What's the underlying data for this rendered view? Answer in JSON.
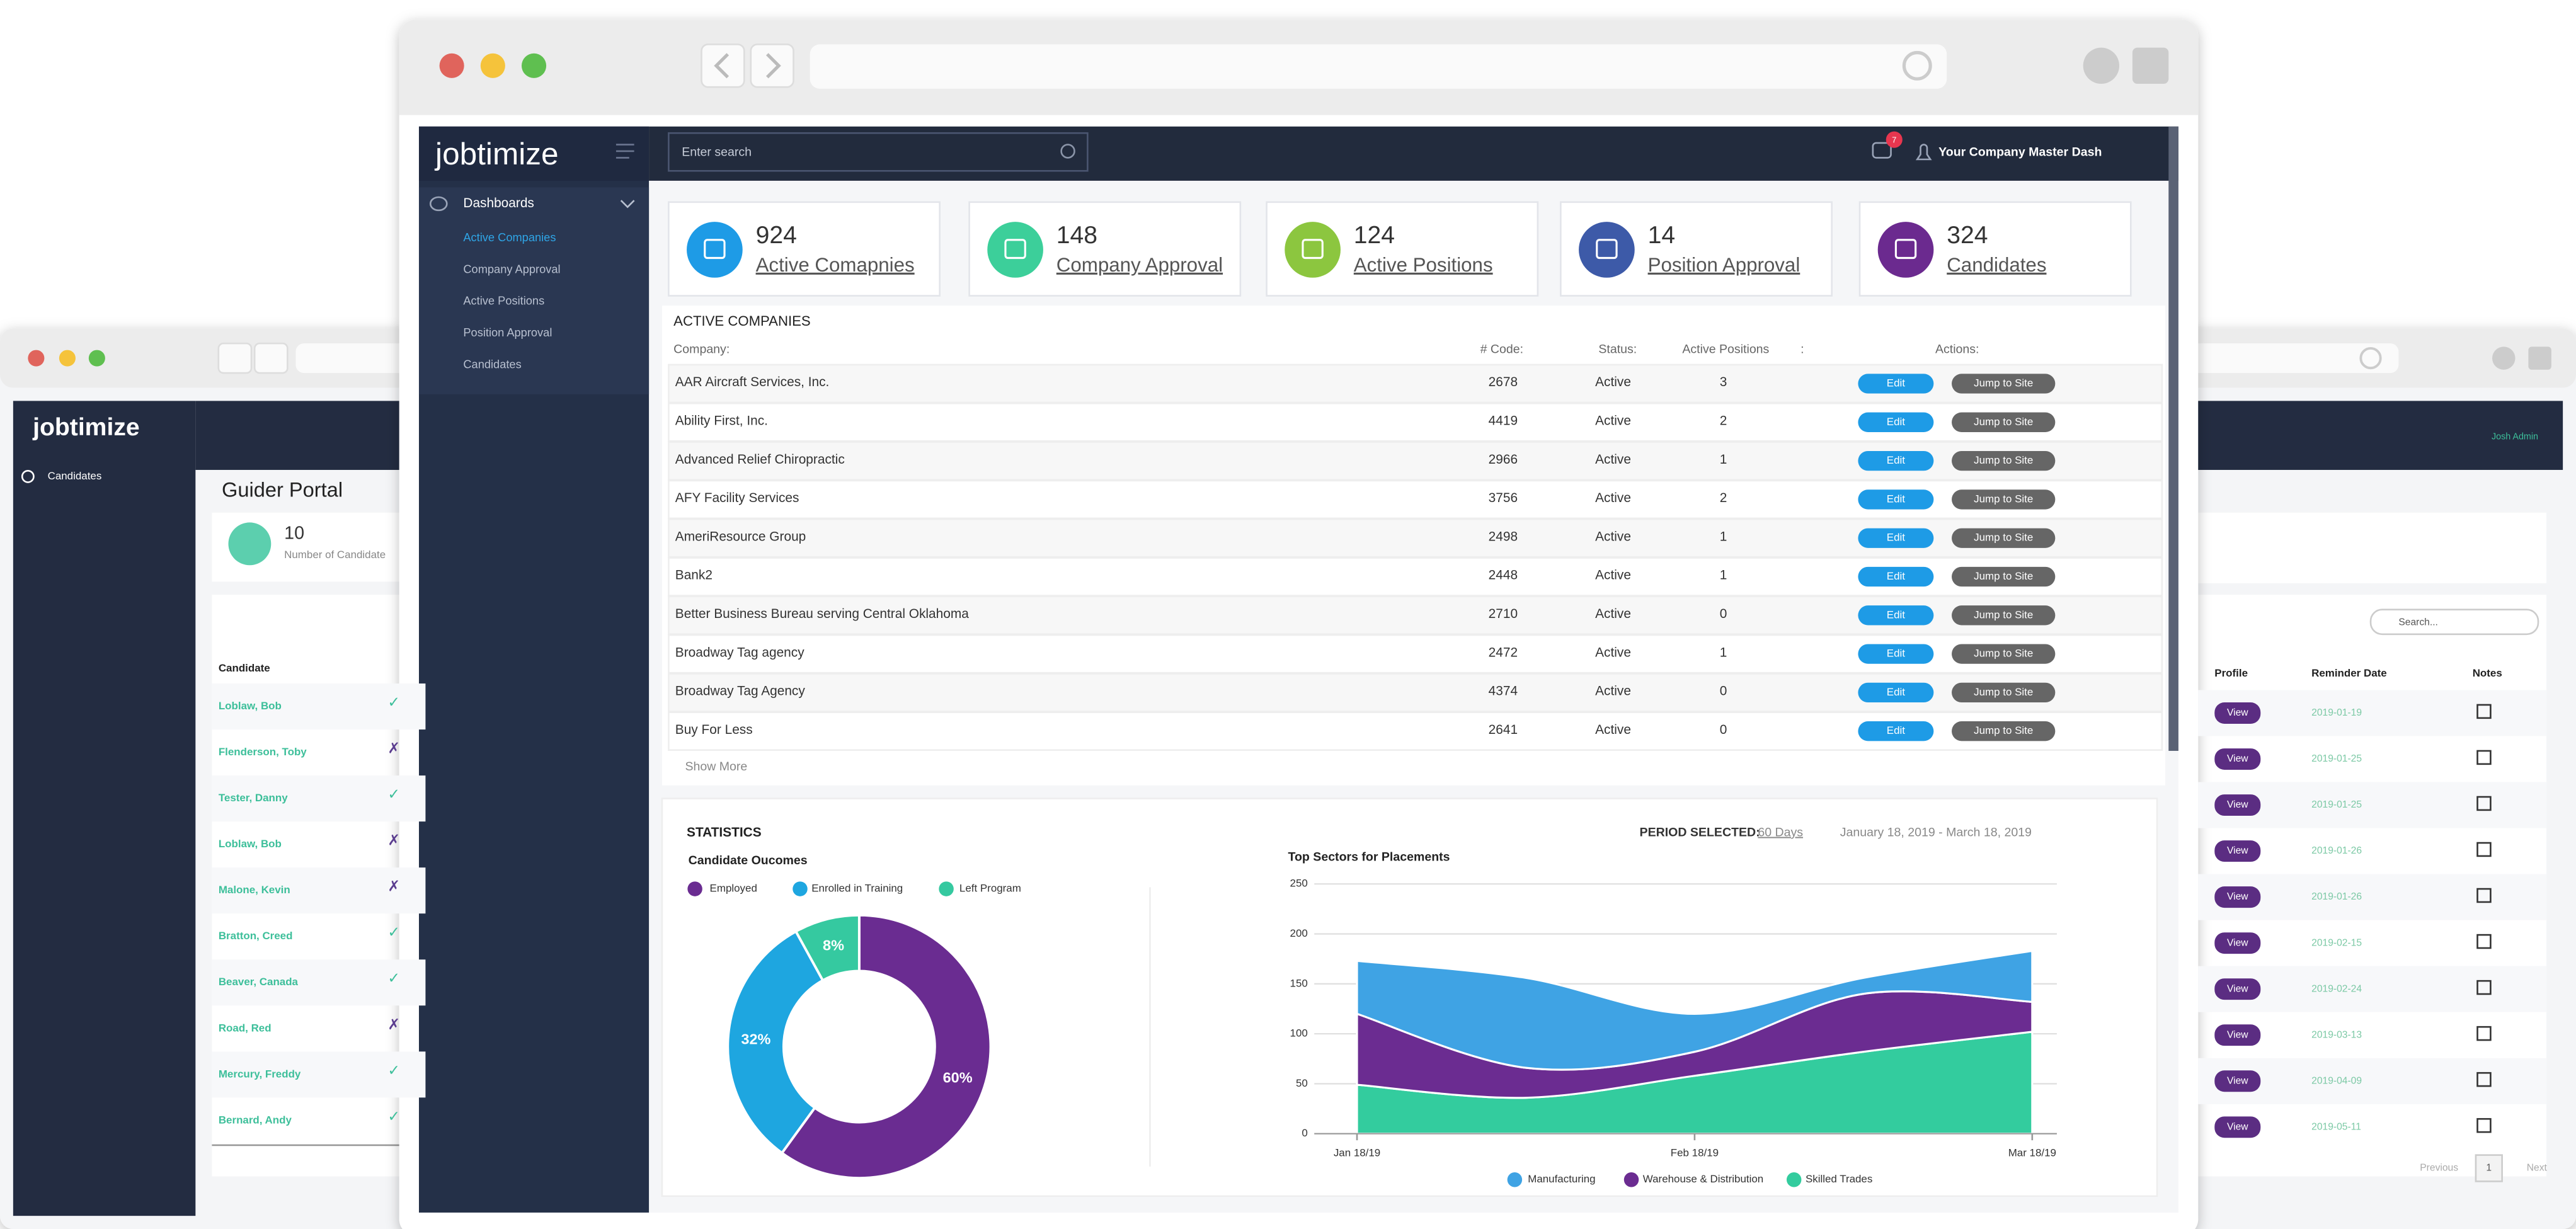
{
  "back_window": {
    "logo": "jobtimize",
    "nav": [
      "Candidates"
    ],
    "title": "Guider Portal",
    "stat": {
      "value": 10,
      "label": "Number of Candidate"
    },
    "candidates": {
      "header": "Candidate",
      "rows": [
        [
          "Loblaw, Bob",
          "✓"
        ],
        [
          "Flenderson, Toby",
          "✗"
        ],
        [
          "Tester, Danny",
          "✓"
        ],
        [
          "Loblaw, Bob",
          "✗"
        ],
        [
          "Malone, Kevin",
          "✗"
        ],
        [
          "Bratton, Creed",
          "✓"
        ],
        [
          "Beaver, Canada",
          "✓"
        ],
        [
          "Road, Red",
          "✗"
        ],
        [
          "Mercury, Freddy",
          "✓"
        ],
        [
          "Bernard, Andy",
          "✓"
        ]
      ]
    },
    "user": "Josh Admin",
    "search": "Search...",
    "reminders": {
      "headers": [
        "Profile",
        "Reminder Date",
        "Notes"
      ],
      "button": "View",
      "dates": [
        "2019-01-19",
        "2019-01-25",
        "2019-01-25",
        "2019-01-26",
        "2019-01-26",
        "2019-02-15",
        "2019-02-24",
        "2019-03-13",
        "2019-04-09",
        "2019-05-11"
      ]
    },
    "pagination": [
      "Previous",
      "1",
      "Next"
    ]
  },
  "app": {
    "logo": "jobtimize",
    "menu": "Dashboards",
    "submenu": [
      "Active Companies",
      "Company Approval",
      "Active Positions",
      "Position Approval",
      "Candidates"
    ],
    "search": "Enter search",
    "badge": 7,
    "account": "Your Company Master Dash",
    "cards": [
      {
        "value": 924,
        "label": "Active Comapnies",
        "color": "#1e9be6"
      },
      {
        "value": 148,
        "label": "Company Approval",
        "color": "#3ccf9a"
      },
      {
        "value": 124,
        "label": "Active Positions",
        "color": "#8cc63f"
      },
      {
        "value": 14,
        "label": "Position Approval",
        "color": "#3d5aa8"
      },
      {
        "value": 324,
        "label": "Candidates",
        "color": "#6b2a8f"
      }
    ],
    "companies": {
      "title": "ACTIVE COMPANIES",
      "headers": [
        "Company:",
        "# Code:",
        "Status:",
        "Active Positions",
        ":",
        "Actions:"
      ],
      "rows": [
        [
          "AAR Aircraft Services, Inc.",
          2678,
          "Active",
          3
        ],
        [
          "Ability First, Inc.",
          4419,
          "Active",
          2
        ],
        [
          "Advanced Relief Chiropractic",
          2966,
          "Active",
          1
        ],
        [
          "AFY Facility Services",
          3756,
          "Active",
          2
        ],
        [
          "AmeriResource Group",
          2498,
          "Active",
          1
        ],
        [
          "Bank2",
          2448,
          "Active",
          1
        ],
        [
          "Better Business Bureau serving Central Oklahoma",
          2710,
          "Active",
          0
        ],
        [
          "Broadway Tag agency",
          2472,
          "Active",
          1
        ],
        [
          "Broadway Tag Agency",
          4374,
          "Active",
          0
        ],
        [
          "Buy For Less",
          2641,
          "Active",
          0
        ]
      ],
      "edit": "Edit",
      "jump": "Jump to Site",
      "more": "Show More"
    },
    "statistics": {
      "title": "STATISTICS",
      "period_label": "PERIOD SELECTED:",
      "period": "60 Days",
      "range": "January 18, 2019 - March 18, 2019"
    }
  },
  "chart_data": [
    {
      "type": "pie",
      "title": "Candidate Oucomes",
      "categories": [
        "Employed",
        "Enrolled in Training",
        "Left Program"
      ],
      "values": [
        60,
        32,
        8
      ],
      "value_labels": [
        "60%",
        "32%",
        "8%"
      ],
      "colors": [
        "#6a2c91",
        "#1ea6e0",
        "#35c9a0"
      ]
    },
    {
      "type": "area",
      "title": "Top Sectors for Placements",
      "stacked": true,
      "grid": true,
      "categories": [
        "Jan 18/19",
        null,
        "Feb 18/19",
        null,
        "Mar 18/19"
      ],
      "series": [
        {
          "name": "Manufacturing",
          "color": "#3fa3e4",
          "values": [
            53,
            90,
            38,
            16,
            51
          ]
        },
        {
          "name": "Warehouse & Distribution",
          "color": "#6b2c91",
          "values": [
            71,
            30,
            24,
            58,
            30
          ]
        },
        {
          "name": "Skilled Trades",
          "color": "#33cc9e",
          "values": [
            49,
            36,
            58,
            82,
            102
          ]
        }
      ],
      "ylim": [
        0,
        250
      ],
      "yticks": [
        0,
        50,
        100,
        150,
        200,
        250
      ]
    }
  ]
}
